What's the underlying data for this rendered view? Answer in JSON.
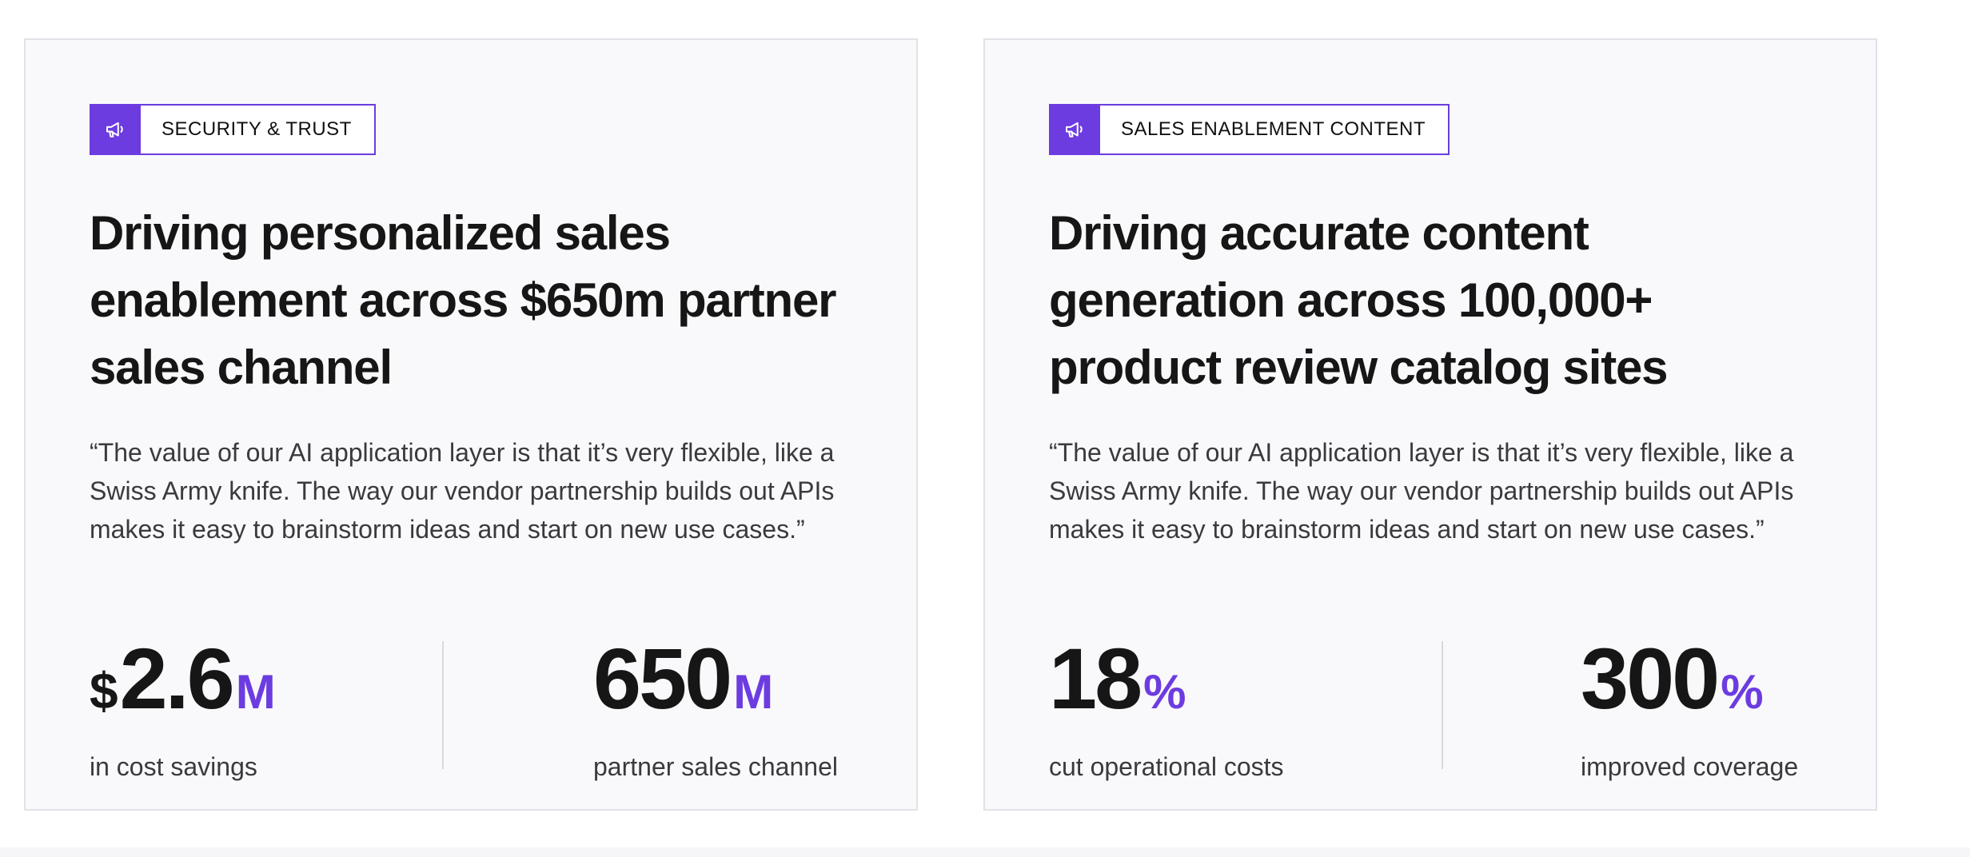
{
  "accent_color": "#6c3ce0",
  "cards": [
    {
      "tag": {
        "icon": "megaphone-icon",
        "label": "SECURITY & TRUST"
      },
      "headline": "Driving personalized sales enablement across $650m partner sales channel",
      "quote": "“The value of our AI application layer is that it’s very flexible, like a Swiss Army knife. The way our vendor partnership builds out APIs makes it easy to brainstorm ideas and start on new use cases.”",
      "stats": [
        {
          "prefix": "$",
          "number": "2.6",
          "suffix": "M",
          "label": "in cost savings"
        },
        {
          "prefix": "",
          "number": "650",
          "suffix": "M",
          "label": "partner sales channel"
        }
      ]
    },
    {
      "tag": {
        "icon": "megaphone-icon",
        "label": "SALES ENABLEMENT CONTENT"
      },
      "headline": "Driving accurate content generation across 100,000+ product review catalog sites",
      "quote": "“The value of our AI application layer is that it’s very flexible, like a Swiss Army knife. The way our vendor partnership builds out APIs makes it easy to brainstorm ideas and start on new use cases.”",
      "stats": [
        {
          "prefix": "",
          "number": "18",
          "suffix": "%",
          "label": "cut operational costs"
        },
        {
          "prefix": "",
          "number": "300",
          "suffix": "%",
          "label": "improved coverage"
        }
      ]
    }
  ]
}
